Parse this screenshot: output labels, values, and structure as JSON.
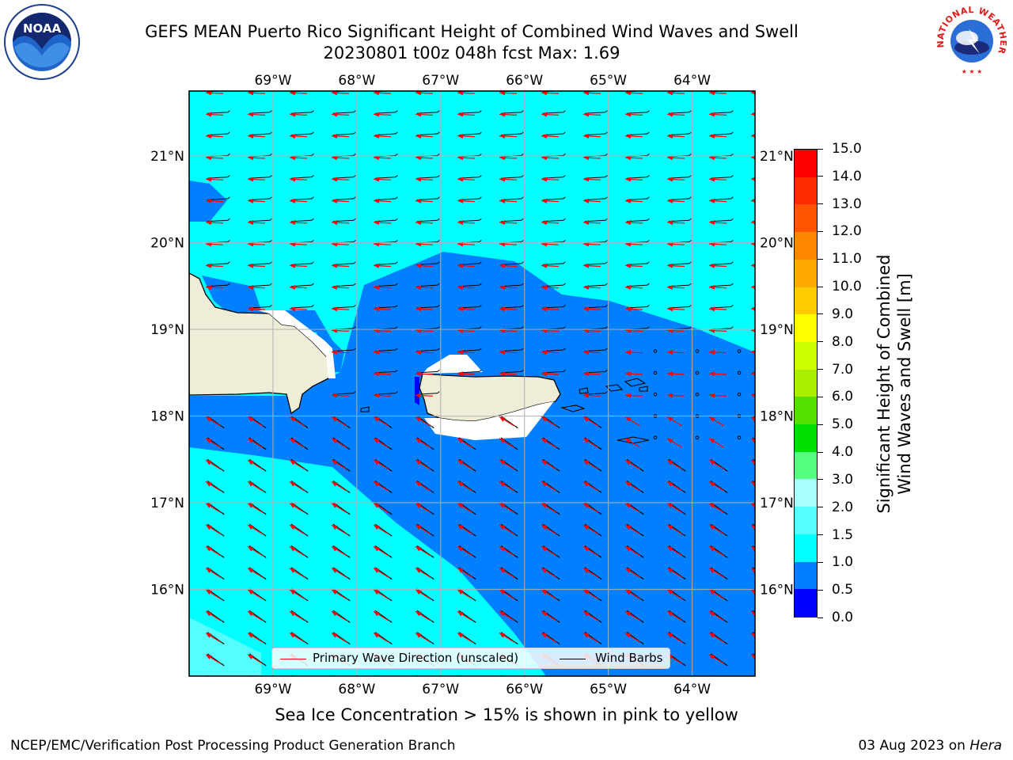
{
  "title": {
    "line1": "GEFS MEAN Puerto Rico Significant Height of Combined Wind Waves and Swell",
    "line2": "20230801 t00z 048h fcst   Max: 1.69"
  },
  "map": {
    "lon_range": [
      -70,
      -63.25
    ],
    "lat_range": [
      15,
      21.75
    ],
    "lon_ticks": [
      "69°W",
      "68°W",
      "67°W",
      "66°W",
      "65°W",
      "64°W"
    ],
    "lat_ticks": [
      "21°N",
      "20°N",
      "19°N",
      "18°N",
      "17°N",
      "16°N"
    ],
    "ocean_color": "#00ffff",
    "wave_band_color": "#0080ff",
    "land_color": "#efedd8"
  },
  "colorbar": {
    "label_line1": "Significant Height of Combined",
    "label_line2": "Wind Waves and Swell [m]",
    "levels": [
      "0.0",
      "0.5",
      "1.0",
      "1.5",
      "2.0",
      "3.0",
      "4.0",
      "5.0",
      "6.0",
      "7.0",
      "8.0",
      "9.0",
      "10.0",
      "11.0",
      "12.0",
      "13.0",
      "14.0",
      "15.0"
    ],
    "colors": [
      "#0000ff",
      "#0080ff",
      "#00ffff",
      "#55ffff",
      "#aaffff",
      "#55ff80",
      "#00e000",
      "#55e000",
      "#aaee00",
      "#ccff00",
      "#ffff00",
      "#ffcc00",
      "#ffaa00",
      "#ff8800",
      "#ff5500",
      "#ff2a00",
      "#ff0000"
    ]
  },
  "legend": {
    "wave_direction": "Primary Wave Direction (unscaled)",
    "wave_direction_color": "#ff0000",
    "wind_barbs": "Wind Barbs",
    "wind_barbs_color": "#000000"
  },
  "footer": {
    "note": "Sea Ice Concentration > 15% is shown in pink to yellow",
    "left": "NCEP/EMC/Verification Post Processing Product Generation Branch",
    "right_date": "03 Aug 2023 on",
    "right_host": "Hera"
  },
  "logos": {
    "noaa_text": "NOAA",
    "nws_text": "NATIONAL WEATHER SERVICE"
  }
}
